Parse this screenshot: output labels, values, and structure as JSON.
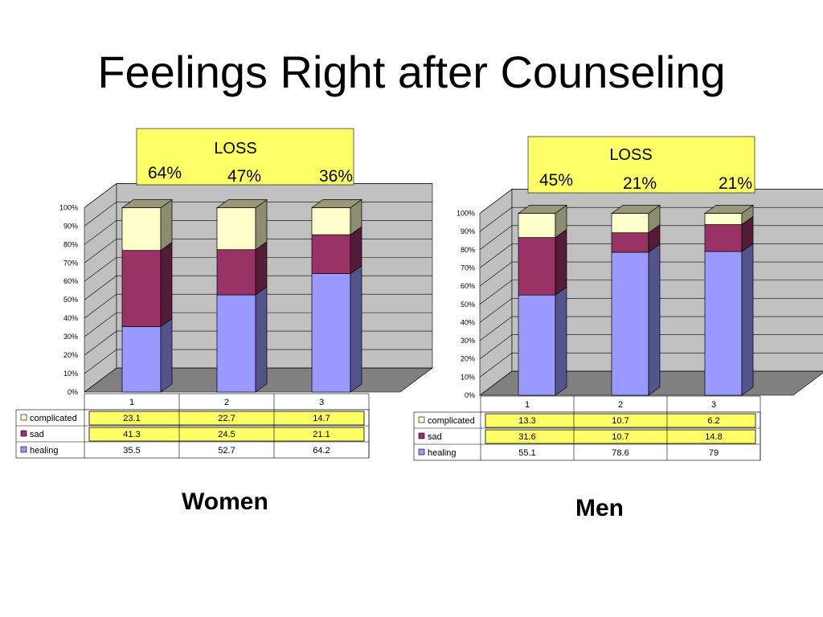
{
  "title": "Feelings Right after Counseling",
  "colors": {
    "healing": "#9999ff",
    "sad": "#993366",
    "complicated": "#ffffcc",
    "highlight": "#ffff66",
    "wall": "#c0c0c0"
  },
  "chart_data": [
    {
      "type": "bar",
      "stacked": true,
      "percent_stacked": true,
      "caption": "Women",
      "categories": [
        "1",
        "2",
        "3"
      ],
      "series": [
        {
          "name": "healing",
          "values": [
            35.5,
            52.7,
            64.2
          ]
        },
        {
          "name": "sad",
          "values": [
            41.3,
            24.5,
            21.1
          ]
        },
        {
          "name": "complicated",
          "values": [
            23.1,
            22.7,
            14.7
          ]
        }
      ],
      "y_ticks": [
        "0%",
        "10%",
        "20%",
        "30%",
        "40%",
        "50%",
        "60%",
        "70%",
        "80%",
        "90%",
        "100%"
      ],
      "ylim": [
        0,
        100
      ],
      "grid": true,
      "data_table": true,
      "loss_box": {
        "label": "LOSS",
        "values": [
          "64%",
          "47%",
          "36%"
        ]
      }
    },
    {
      "type": "bar",
      "stacked": true,
      "percent_stacked": true,
      "caption": "Men",
      "categories": [
        "1",
        "2",
        "3"
      ],
      "series": [
        {
          "name": "healing",
          "values": [
            55.1,
            78.6,
            79
          ]
        },
        {
          "name": "sad",
          "values": [
            31.6,
            10.7,
            14.8
          ]
        },
        {
          "name": "complicated",
          "values": [
            13.3,
            10.7,
            6.2
          ]
        }
      ],
      "y_ticks": [
        "0%",
        "10%",
        "20%",
        "30%",
        "40%",
        "50%",
        "60%",
        "70%",
        "80%",
        "90%",
        "100%"
      ],
      "ylim": [
        0,
        100
      ],
      "grid": true,
      "data_table": true,
      "loss_box": {
        "label": "LOSS",
        "values": [
          "45%",
          "21%",
          "21%"
        ]
      }
    }
  ]
}
